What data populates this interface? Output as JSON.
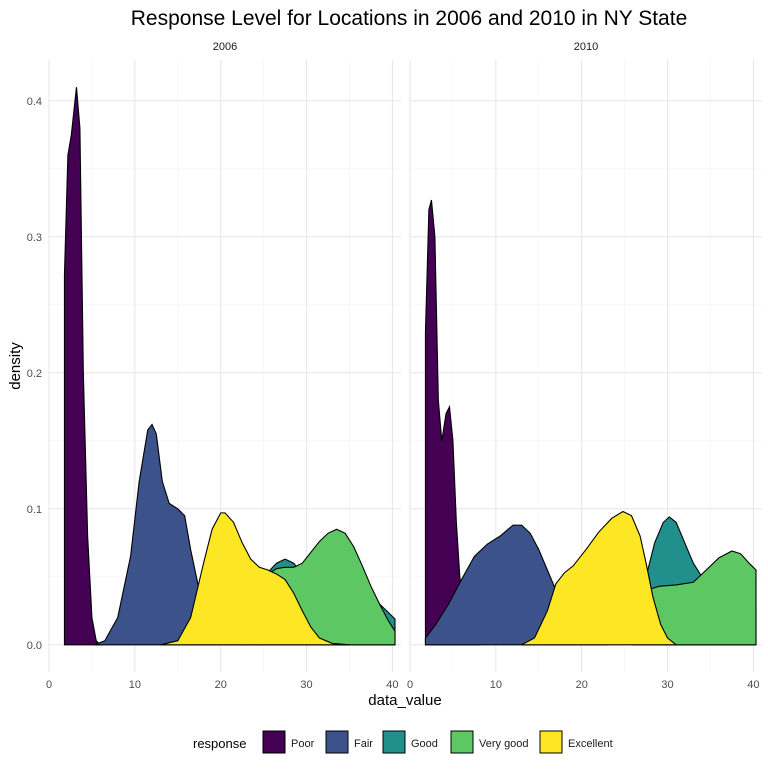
{
  "chart_data": {
    "type": "area",
    "title": "Response Level for Locations in 2006 and 2010 in NY State",
    "xlabel": "data_value",
    "ylabel": "density",
    "xlim": [
      0,
      41
    ],
    "ylim": [
      -0.02,
      0.43
    ],
    "x_ticks": [
      "0",
      "10",
      "20",
      "30",
      "40"
    ],
    "y_ticks": [
      "0.0",
      "0.1",
      "0.2",
      "0.3",
      "0.4"
    ],
    "legend_title": "response",
    "legend_position": "bottom",
    "grid": true,
    "facets": [
      "2006",
      "2010"
    ],
    "series": [
      {
        "name": "Poor",
        "color": "#440154"
      },
      {
        "name": "Fair",
        "color": "#3B528B"
      },
      {
        "name": "Good",
        "color": "#21908C"
      },
      {
        "name": "Very good",
        "color": "#5DC863"
      },
      {
        "name": "Excellent",
        "color": "#FDE725"
      }
    ],
    "panels": [
      {
        "year": "2006",
        "densities": {
          "Poor": [
            [
              1.8,
              0.272
            ],
            [
              2.2,
              0.36
            ],
            [
              2.6,
              0.375
            ],
            [
              3.2,
              0.41
            ],
            [
              3.6,
              0.38
            ],
            [
              4.0,
              0.2
            ],
            [
              4.5,
              0.08
            ],
            [
              5.0,
              0.02
            ],
            [
              5.5,
              0.003
            ],
            [
              6.0,
              0.0
            ]
          ],
          "Fair": [
            [
              5.3,
              0.0
            ],
            [
              6.5,
              0.003
            ],
            [
              8.0,
              0.02
            ],
            [
              9.5,
              0.065
            ],
            [
              10.5,
              0.12
            ],
            [
              11.5,
              0.158
            ],
            [
              12.0,
              0.162
            ],
            [
              12.5,
              0.155
            ],
            [
              13.2,
              0.12
            ],
            [
              14.0,
              0.104
            ],
            [
              15.0,
              0.1
            ],
            [
              15.8,
              0.095
            ],
            [
              16.5,
              0.07
            ],
            [
              17.5,
              0.04
            ],
            [
              18.5,
              0.022
            ],
            [
              19.5,
              0.01
            ],
            [
              21.0,
              0.003
            ],
            [
              23.0,
              0.0
            ]
          ],
          "Good": [
            [
              23.0,
              0.0
            ],
            [
              24.0,
              0.035
            ],
            [
              25.0,
              0.05
            ],
            [
              26.5,
              0.06
            ],
            [
              27.5,
              0.063
            ],
            [
              28.5,
              0.06
            ],
            [
              29.5,
              0.052
            ],
            [
              30.5,
              0.045
            ],
            [
              31.5,
              0.04
            ],
            [
              33.0,
              0.038
            ],
            [
              35.0,
              0.036
            ],
            [
              37.0,
              0.035
            ],
            [
              38.5,
              0.03
            ],
            [
              40.3,
              0.019
            ],
            [
              40.3,
              0.0
            ]
          ],
          "Very good": [
            [
              22.0,
              0.0
            ],
            [
              23.5,
              0.03
            ],
            [
              25.0,
              0.05
            ],
            [
              26.5,
              0.056
            ],
            [
              27.5,
              0.057
            ],
            [
              28.5,
              0.057
            ],
            [
              29.5,
              0.06
            ],
            [
              30.5,
              0.068
            ],
            [
              31.5,
              0.076
            ],
            [
              32.5,
              0.082
            ],
            [
              33.5,
              0.085
            ],
            [
              34.5,
              0.082
            ],
            [
              35.5,
              0.072
            ],
            [
              36.5,
              0.058
            ],
            [
              37.5,
              0.043
            ],
            [
              38.5,
              0.03
            ],
            [
              39.5,
              0.018
            ],
            [
              40.3,
              0.01
            ],
            [
              40.3,
              0.0
            ]
          ],
          "Excellent": [
            [
              13.0,
              0.0
            ],
            [
              15.0,
              0.003
            ],
            [
              16.5,
              0.02
            ],
            [
              18.0,
              0.06
            ],
            [
              19.0,
              0.085
            ],
            [
              20.0,
              0.097
            ],
            [
              20.5,
              0.097
            ],
            [
              21.5,
              0.09
            ],
            [
              22.5,
              0.075
            ],
            [
              23.5,
              0.063
            ],
            [
              24.5,
              0.057
            ],
            [
              25.5,
              0.055
            ],
            [
              26.5,
              0.052
            ],
            [
              27.5,
              0.048
            ],
            [
              28.5,
              0.038
            ],
            [
              29.5,
              0.025
            ],
            [
              30.5,
              0.013
            ],
            [
              31.5,
              0.005
            ],
            [
              33.0,
              0.001
            ],
            [
              35.0,
              0.0
            ]
          ]
        }
      },
      {
        "year": "2010",
        "densities": {
          "Poor": [
            [
              1.8,
              0.23
            ],
            [
              2.2,
              0.32
            ],
            [
              2.5,
              0.327
            ],
            [
              2.9,
              0.3
            ],
            [
              3.3,
              0.18
            ],
            [
              3.7,
              0.15
            ],
            [
              4.2,
              0.17
            ],
            [
              4.6,
              0.175
            ],
            [
              5.0,
              0.15
            ],
            [
              5.4,
              0.09
            ],
            [
              5.8,
              0.05
            ],
            [
              6.4,
              0.02
            ],
            [
              7.0,
              0.005
            ],
            [
              8.0,
              0.0
            ]
          ],
          "Fair": [
            [
              1.8,
              0.005
            ],
            [
              3.0,
              0.015
            ],
            [
              4.5,
              0.03
            ],
            [
              6.0,
              0.048
            ],
            [
              7.5,
              0.065
            ],
            [
              9.0,
              0.074
            ],
            [
              10.5,
              0.08
            ],
            [
              12.0,
              0.088
            ],
            [
              13.0,
              0.088
            ],
            [
              14.0,
              0.082
            ],
            [
              15.0,
              0.07
            ],
            [
              16.0,
              0.055
            ],
            [
              17.0,
              0.04
            ],
            [
              18.0,
              0.025
            ],
            [
              19.5,
              0.01
            ],
            [
              21.0,
              0.003
            ],
            [
              23.0,
              0.0
            ]
          ],
          "Good": [
            [
              26.0,
              0.0
            ],
            [
              27.5,
              0.05
            ],
            [
              28.5,
              0.075
            ],
            [
              29.5,
              0.09
            ],
            [
              30.2,
              0.094
            ],
            [
              31.0,
              0.09
            ],
            [
              32.0,
              0.075
            ],
            [
              33.0,
              0.06
            ],
            [
              34.0,
              0.05
            ],
            [
              35.5,
              0.04
            ],
            [
              37.0,
              0.033
            ],
            [
              39.0,
              0.03
            ],
            [
              40.3,
              0.028
            ],
            [
              40.3,
              0.0
            ]
          ],
          "Very good": [
            [
              26.0,
              0.0
            ],
            [
              27.5,
              0.04
            ],
            [
              29.0,
              0.043
            ],
            [
              31.0,
              0.044
            ],
            [
              33.0,
              0.046
            ],
            [
              34.5,
              0.055
            ],
            [
              36.0,
              0.064
            ],
            [
              37.5,
              0.069
            ],
            [
              38.5,
              0.067
            ],
            [
              39.5,
              0.06
            ],
            [
              40.3,
              0.055
            ],
            [
              40.3,
              0.0
            ]
          ],
          "Excellent": [
            [
              13.0,
              0.0
            ],
            [
              14.5,
              0.005
            ],
            [
              16.0,
              0.025
            ],
            [
              17.0,
              0.045
            ],
            [
              18.0,
              0.053
            ],
            [
              19.0,
              0.058
            ],
            [
              20.5,
              0.07
            ],
            [
              22.0,
              0.083
            ],
            [
              23.5,
              0.093
            ],
            [
              24.8,
              0.098
            ],
            [
              25.8,
              0.095
            ],
            [
              26.8,
              0.08
            ],
            [
              27.5,
              0.06
            ],
            [
              28.3,
              0.035
            ],
            [
              29.2,
              0.015
            ],
            [
              30.0,
              0.005
            ],
            [
              31.0,
              0.0
            ]
          ]
        }
      }
    ]
  }
}
